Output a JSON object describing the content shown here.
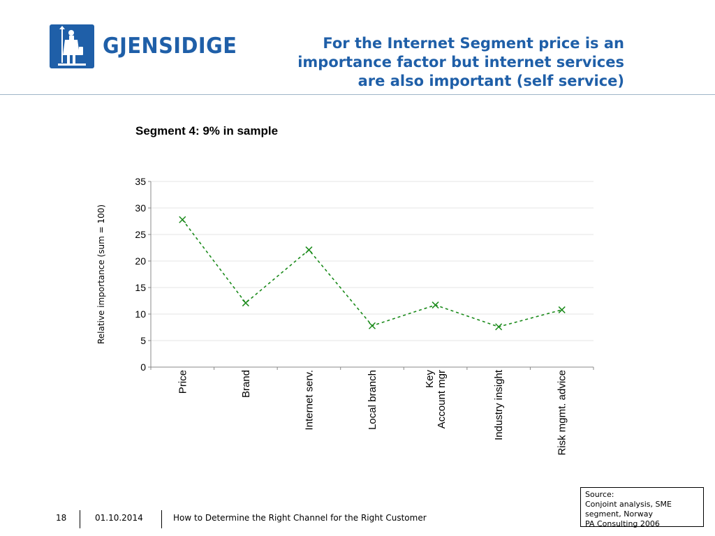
{
  "header": {
    "logo_text": "GJENSIDIGE",
    "title_lines": [
      "For the Internet Segment price is an",
      "importance factor but internet services",
      "are also important (self service)"
    ],
    "brand_color": "#1f5fa8"
  },
  "subtitle": "Segment 4: 9% in sample",
  "chart_data": {
    "type": "line",
    "categories": [
      [
        "Price"
      ],
      [
        "Brand"
      ],
      [
        "Internet serv."
      ],
      [
        "Local branch"
      ],
      [
        "Key",
        "Account mgr"
      ],
      [
        "Industry insight"
      ],
      [
        "Risk mgmt. advice"
      ]
    ],
    "values": [
      27.8,
      12.1,
      22.1,
      7.8,
      11.7,
      7.6,
      10.8
    ],
    "ylabel": "Relative importance (sum = 100)",
    "ylim": [
      0,
      35
    ],
    "yticks": [
      0,
      5,
      10,
      15,
      20,
      25,
      30,
      35
    ],
    "grid": true,
    "line_style": "dashed",
    "marker": "x",
    "color": "#1a8a1a"
  },
  "source": {
    "lines": [
      "Source:",
      "Conjoint analysis, SME",
      "segment, Norway",
      "PA Consulting 2006"
    ]
  },
  "footer": {
    "page": "18",
    "date": "01.10.2014",
    "text": "How to Determine the Right Channel for the Right Customer"
  }
}
